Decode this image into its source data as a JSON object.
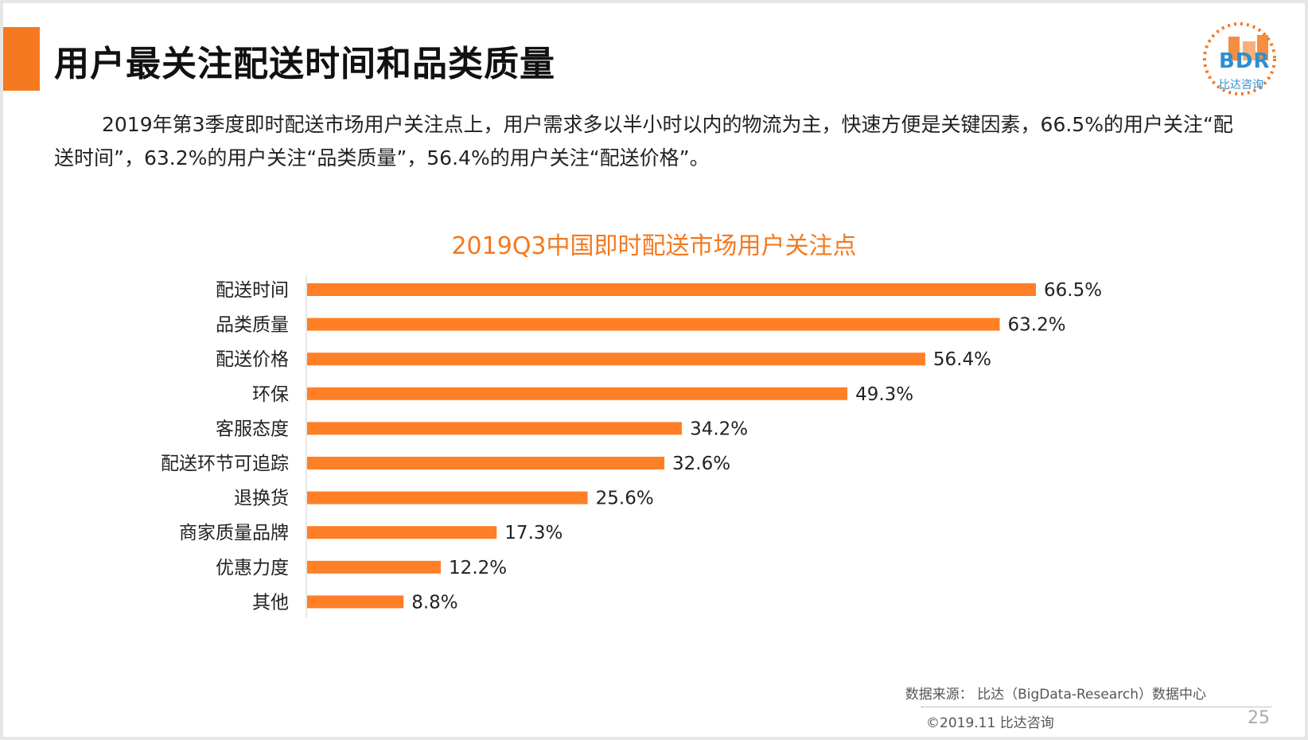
{
  "header": {
    "title": "用户最关注配送时间和品类质量",
    "logo_text": "BDR",
    "logo_sub": "比达咨询"
  },
  "summary": "2019年第3季度即时配送市场用户关注点上，用户需求多以半小时以内的物流为主，快速方便是关键因素，66.5%的用户关注“配送时间”，63.2%的用户关注“品类质量”，56.4%的用户关注“配送价格”。",
  "colors": {
    "accent": "#f47920",
    "bar": "#ff7f27",
    "title_orange": "#f47920",
    "logo_blue": "#2d8fd3"
  },
  "chart_data": {
    "type": "bar",
    "orientation": "horizontal",
    "title": "2019Q3中国即时配送市场用户关注点",
    "categories": [
      "配送时间",
      "品类质量",
      "配送价格",
      "环保",
      "客服态度",
      "配送环节可追踪",
      "退换货",
      "商家质量品牌",
      "优惠力度",
      "其他"
    ],
    "values": [
      66.5,
      63.2,
      56.4,
      49.3,
      34.2,
      32.6,
      25.6,
      17.3,
      12.2,
      8.8
    ],
    "value_labels": [
      "66.5%",
      "63.2%",
      "56.4%",
      "49.3%",
      "34.2%",
      "32.6%",
      "25.6%",
      "17.3%",
      "12.2%",
      "8.8%"
    ],
    "unit": "%",
    "xlim": [
      0,
      66.5
    ],
    "grid": false,
    "legend": "none"
  },
  "footer": {
    "source": "数据来源： 比达（BigData-Research）数据中心",
    "copyright": "©2019.11  比达咨询",
    "page_number": "25"
  }
}
